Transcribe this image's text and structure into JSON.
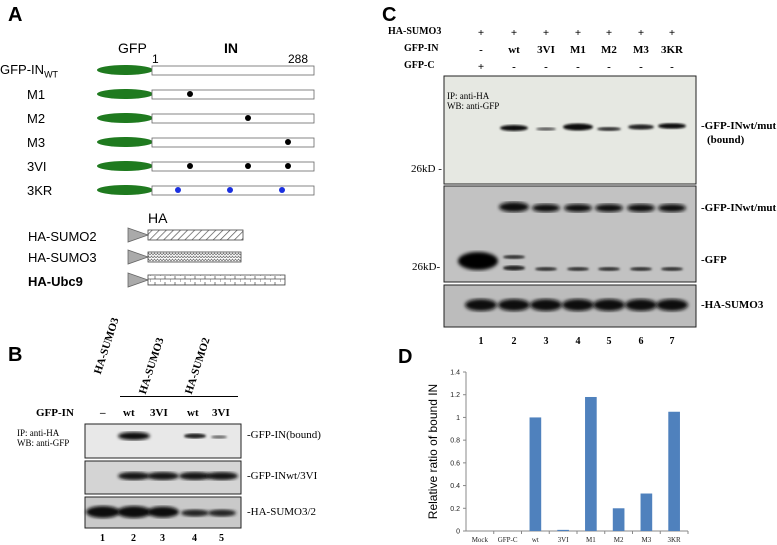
{
  "panelA": {
    "letter": "A",
    "header_gfp": "GFP",
    "header_in": "IN",
    "pos_start": "1",
    "pos_end": "288",
    "constructs": [
      "GFP-IN",
      "M1",
      "M2",
      "M3",
      "3VI",
      "3KR"
    ],
    "wt_subscript": "WT",
    "ha_header": "HA",
    "ha_constructs": [
      "HA-SUMO2",
      "HA-SUMO3",
      "HA-Ubc9"
    ]
  },
  "panelB": {
    "letter": "B",
    "col_headers": [
      "HA-SUMO3",
      "HA-SUMO3",
      "HA-SUMO2"
    ],
    "gfp_in_label": "GFP-IN",
    "lanes_top": [
      "–",
      "wt",
      "3VI",
      "wt",
      "3VI"
    ],
    "ip_line1": "IP: anti-HA",
    "ip_line2": "WB: anti-GFP",
    "band_labels": [
      "-GFP-IN(bound)",
      "-GFP-INwt/3VI",
      "-HA-SUMO3/2"
    ],
    "lane_numbers": [
      "1",
      "2",
      "3",
      "4",
      "5"
    ]
  },
  "panelC": {
    "letter": "C",
    "row_labels": [
      "HA-SUMO3",
      "GFP-IN",
      "GFP-C"
    ],
    "row_values": [
      [
        "+",
        "+",
        "+",
        "+",
        "+",
        "+",
        "+"
      ],
      [
        "-",
        "wt",
        "3VI",
        "M1",
        "M2",
        "M3",
        "3KR"
      ],
      [
        "+",
        "-",
        "-",
        "-",
        "-",
        "-",
        "-"
      ]
    ],
    "ip_line1": "IP: anti-HA",
    "ip_line2": "WB: anti-GFP",
    "marker1": "26kD -",
    "marker2": "26kD-",
    "band_labels": [
      "-GFP-INwt/mut",
      "(bound)",
      "-GFP-INwt/mut",
      "-GFP",
      "-HA-SUMO3"
    ],
    "lane_numbers": [
      "1",
      "2",
      "3",
      "4",
      "5",
      "6",
      "7"
    ]
  },
  "panelD": {
    "letter": "D"
  },
  "chart_data": {
    "type": "bar",
    "categories": [
      "Mock",
      "GFP-C",
      "wt",
      "3VI",
      "M1",
      "M2",
      "M3",
      "3KR"
    ],
    "values": [
      0,
      0,
      1.0,
      0.01,
      1.18,
      0.2,
      0.33,
      1.05
    ],
    "ylabel": "Relative ratio of bound IN",
    "xlabel": "",
    "ylim": [
      0,
      1.4
    ],
    "yticks": [
      "0",
      "0.2",
      "0.4",
      "0.6",
      "0.8",
      "1",
      "1.2",
      "1.4"
    ],
    "grid": false,
    "bar_color": "#4f81bd"
  }
}
